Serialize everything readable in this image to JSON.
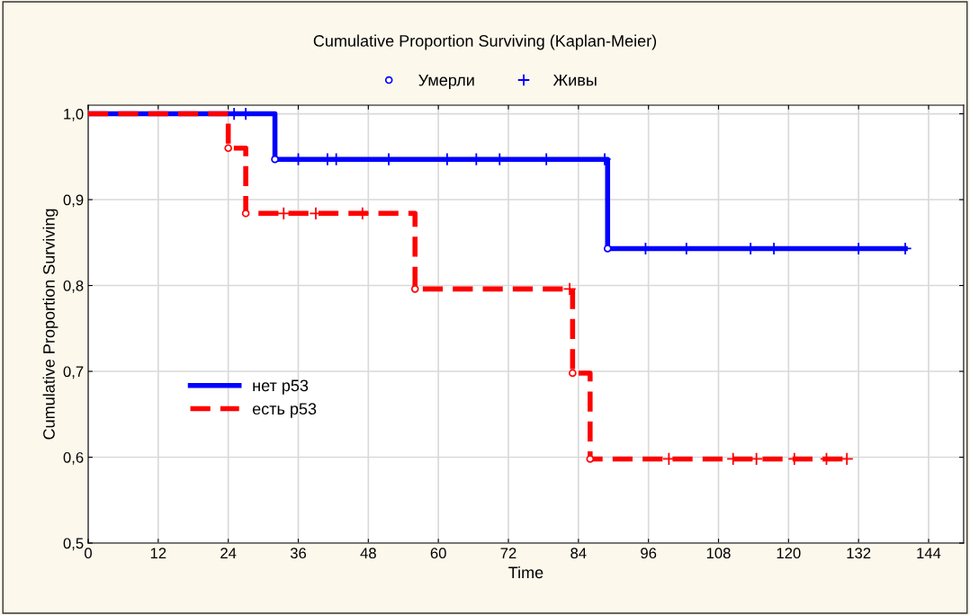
{
  "chart_data": {
    "type": "step",
    "title": "Cumulative Proportion Surviving (Kaplan-Meier)",
    "xlabel": "Time",
    "ylabel": "Cumulative Proportion Surviving",
    "series": [
      {
        "name": "нет p53",
        "color": "#0000ff",
        "line_style": "solid",
        "x": [
          0,
          32,
          89,
          140
        ],
        "values": [
          1.0,
          0.947,
          0.843,
          0.843
        ]
      },
      {
        "name": "есть p53",
        "color": "#ff0000",
        "line_style": "dashed",
        "x": [
          0,
          24,
          27,
          56,
          83,
          86,
          130
        ],
        "values": [
          1.0,
          0.96,
          0.884,
          0.796,
          0.698,
          0.598,
          0.598
        ]
      },
      {
        "name": "Умерли",
        "type": "scatter",
        "marker": "circle",
        "color": "#0000ff",
        "colors": [
          "#0000ff",
          "#0000ff",
          "#ff0000",
          "#ff0000",
          "#ff0000",
          "#ff0000",
          "#ff0000"
        ],
        "x": [
          32,
          89,
          24,
          27,
          56,
          83,
          86
        ],
        "values": [
          0.947,
          0.843,
          0.96,
          0.884,
          0.796,
          0.698,
          0.598
        ]
      },
      {
        "name": "Живы",
        "type": "scatter",
        "marker": "cross",
        "color": "#0000ff",
        "colors": [
          "#0000ff",
          "#0000ff",
          "#0000ff",
          "#0000ff",
          "#0000ff",
          "#0000ff",
          "#0000ff",
          "#0000ff",
          "#0000ff",
          "#0000ff",
          "#0000ff",
          "#0000ff",
          "#0000ff",
          "#0000ff",
          "#0000ff",
          "#0000ff",
          "#0000ff",
          "#ff0000",
          "#ff0000",
          "#ff0000",
          "#ff0000",
          "#ff0000",
          "#ff0000",
          "#ff0000",
          "#ff0000",
          "#ff0000",
          "#ff0000"
        ],
        "x": [
          25,
          27,
          36,
          41,
          42.5,
          51.5,
          61.5,
          66.5,
          70.5,
          78.5,
          88.5,
          95.5,
          102.5,
          113.5,
          117.5,
          132,
          140,
          33.5,
          39,
          47,
          82.5,
          99.5,
          110.5,
          114.5,
          121,
          126.5,
          130
        ],
        "values": [
          1.0,
          1.0,
          0.947,
          0.947,
          0.947,
          0.947,
          0.947,
          0.947,
          0.947,
          0.947,
          0.947,
          0.843,
          0.843,
          0.843,
          0.843,
          0.843,
          0.843,
          0.884,
          0.884,
          0.884,
          0.796,
          0.598,
          0.598,
          0.598,
          0.598,
          0.598,
          0.598
        ]
      }
    ],
    "xlim": [
      0,
      150
    ],
    "xticks": [
      0,
      12,
      24,
      36,
      48,
      60,
      72,
      84,
      96,
      108,
      120,
      132,
      144
    ],
    "ylim": [
      0.5,
      1.01
    ],
    "yticks": [
      {
        "value": 0.5,
        "label": "0,5"
      },
      {
        "value": 0.6,
        "label": "0,6"
      },
      {
        "value": 0.7,
        "label": "0,7"
      },
      {
        "value": 0.8,
        "label": "0,8"
      },
      {
        "value": 0.9,
        "label": "0,9"
      },
      {
        "value": 1.0,
        "label": "1,0"
      }
    ],
    "grid": true,
    "legend": "top"
  }
}
